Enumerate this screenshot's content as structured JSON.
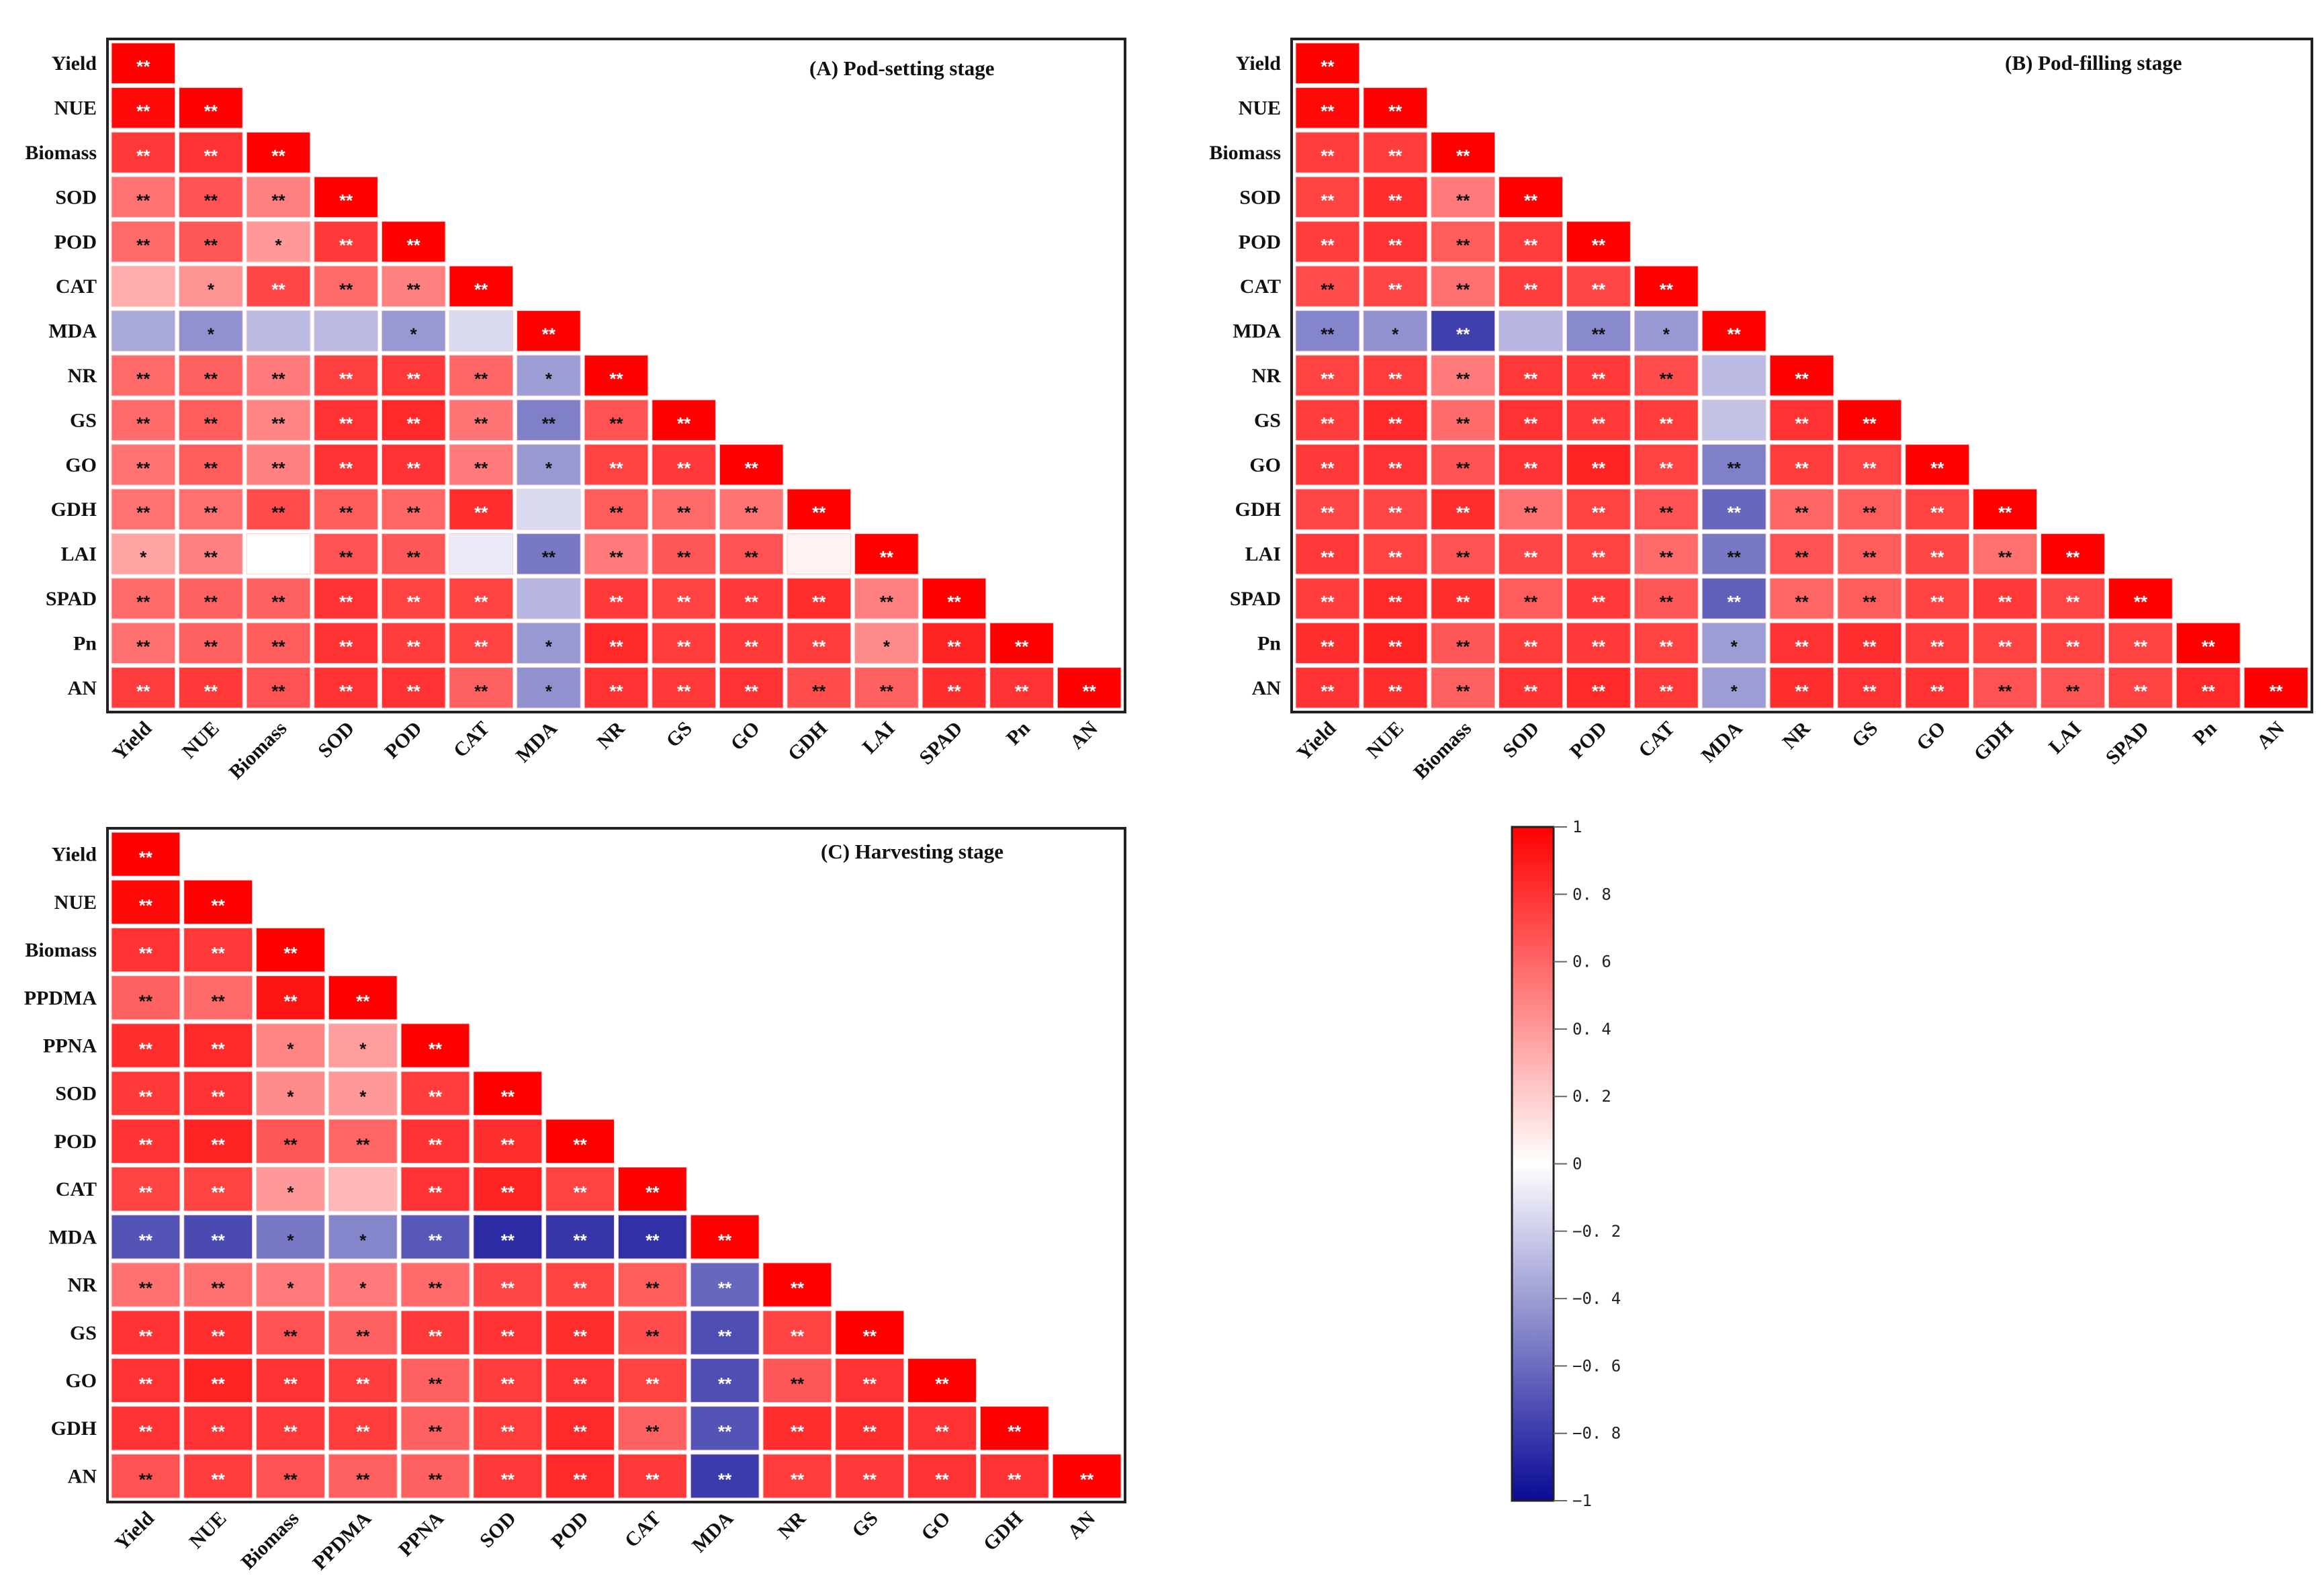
{
  "chart_data": [
    {
      "type": "heatmap",
      "title": "(A)  Pod-setting stage",
      "variables": [
        "Yield",
        "NUE",
        "Biomass",
        "SOD",
        "POD",
        "CAT",
        "MDA",
        "NR",
        "GS",
        "GO",
        "GDH",
        "LAI",
        "SPAD",
        "Pn",
        "AN"
      ],
      "r": [
        [
          1
        ],
        [
          0.97,
          1
        ],
        [
          0.78,
          0.8,
          1
        ],
        [
          0.55,
          0.68,
          0.5,
          1
        ],
        [
          0.58,
          0.66,
          0.4,
          0.78,
          1
        ],
        [
          0.32,
          0.42,
          0.72,
          0.58,
          0.5,
          1
        ],
        [
          -0.35,
          -0.45,
          -0.28,
          -0.28,
          -0.42,
          -0.15,
          1
        ],
        [
          0.58,
          0.62,
          0.52,
          0.75,
          0.78,
          0.6,
          -0.4,
          1
        ],
        [
          0.58,
          0.64,
          0.48,
          0.8,
          0.84,
          0.54,
          -0.52,
          0.68,
          1
        ],
        [
          0.55,
          0.64,
          0.5,
          0.8,
          0.8,
          0.52,
          -0.42,
          0.74,
          0.78,
          1
        ],
        [
          0.55,
          0.56,
          0.7,
          0.64,
          0.6,
          0.82,
          -0.15,
          0.64,
          0.58,
          0.55,
          1
        ],
        [
          0.36,
          0.5,
          0.0,
          0.68,
          0.66,
          -0.08,
          -0.55,
          0.52,
          0.66,
          0.68,
          0.05,
          1
        ],
        [
          0.58,
          0.62,
          0.62,
          0.8,
          0.74,
          0.74,
          -0.3,
          0.78,
          0.74,
          0.78,
          0.82,
          0.5,
          1
        ],
        [
          0.56,
          0.62,
          0.64,
          0.8,
          0.76,
          0.74,
          -0.42,
          0.84,
          0.76,
          0.78,
          0.76,
          0.46,
          0.86,
          1
        ],
        [
          0.76,
          0.78,
          0.68,
          0.8,
          0.8,
          0.62,
          -0.45,
          0.8,
          0.78,
          0.8,
          0.7,
          0.62,
          0.82,
          0.8,
          1
        ]
      ],
      "sig": [
        [
          "**"
        ],
        [
          "**",
          "**"
        ],
        [
          "**",
          "**",
          "**"
        ],
        [
          "**",
          "**",
          "**",
          "**"
        ],
        [
          "**",
          "**",
          "*",
          "**",
          "**"
        ],
        [
          "",
          "*",
          "**",
          "**",
          "**",
          "**"
        ],
        [
          "",
          "*",
          "",
          "",
          "*",
          "",
          "**"
        ],
        [
          "**",
          "**",
          "**",
          "**",
          "**",
          "**",
          "*",
          "**"
        ],
        [
          "**",
          "**",
          "**",
          "**",
          "**",
          "**",
          "**",
          "**",
          "**"
        ],
        [
          "**",
          "**",
          "**",
          "**",
          "**",
          "**",
          "*",
          "**",
          "**",
          "**"
        ],
        [
          "**",
          "**",
          "**",
          "**",
          "**",
          "**",
          "",
          "**",
          "**",
          "**",
          "**"
        ],
        [
          "*",
          "**",
          "",
          "**",
          "**",
          "",
          "**",
          "**",
          "**",
          "**",
          "",
          "**"
        ],
        [
          "**",
          "**",
          "**",
          "**",
          "**",
          "**",
          "",
          "**",
          "**",
          "**",
          "**",
          "**",
          "**"
        ],
        [
          "**",
          "**",
          "**",
          "**",
          "**",
          "**",
          "*",
          "**",
          "**",
          "**",
          "**",
          "*",
          "**",
          "**"
        ],
        [
          "**",
          "**",
          "**",
          "**",
          "**",
          "**",
          "*",
          "**",
          "**",
          "**",
          "**",
          "**",
          "**",
          "**",
          "**"
        ]
      ]
    },
    {
      "type": "heatmap",
      "title": "(B)  Pod-filling stage",
      "variables": [
        "Yield",
        "NUE",
        "Biomass",
        "SOD",
        "POD",
        "CAT",
        "MDA",
        "NR",
        "GS",
        "GO",
        "GDH",
        "LAI",
        "SPAD",
        "Pn",
        "AN"
      ],
      "r": [
        [
          1
        ],
        [
          0.97,
          1
        ],
        [
          0.76,
          0.76,
          1
        ],
        [
          0.74,
          0.82,
          0.52,
          1
        ],
        [
          0.76,
          0.8,
          0.64,
          0.76,
          1
        ],
        [
          0.7,
          0.73,
          0.56,
          0.76,
          0.73,
          1
        ],
        [
          -0.5,
          -0.45,
          -0.78,
          -0.3,
          -0.48,
          -0.42,
          1
        ],
        [
          0.74,
          0.76,
          0.52,
          0.78,
          0.78,
          0.7,
          -0.28,
          1
        ],
        [
          0.76,
          0.84,
          0.58,
          0.8,
          0.78,
          0.76,
          -0.25,
          0.8,
          1
        ],
        [
          0.78,
          0.8,
          0.68,
          0.8,
          0.86,
          0.74,
          -0.52,
          0.76,
          0.74,
          1
        ],
        [
          0.73,
          0.73,
          0.82,
          0.56,
          0.74,
          0.68,
          -0.62,
          0.6,
          0.64,
          0.74,
          1
        ],
        [
          0.78,
          0.74,
          0.68,
          0.73,
          0.74,
          0.58,
          -0.55,
          0.68,
          0.64,
          0.73,
          0.56,
          1
        ],
        [
          0.76,
          0.84,
          0.82,
          0.64,
          0.78,
          0.66,
          -0.65,
          0.6,
          0.64,
          0.74,
          0.78,
          0.73,
          1
        ],
        [
          0.82,
          0.86,
          0.66,
          0.76,
          0.78,
          0.74,
          -0.4,
          0.8,
          0.82,
          0.76,
          0.74,
          0.74,
          0.74,
          1
        ],
        [
          0.8,
          0.82,
          0.62,
          0.8,
          0.84,
          0.78,
          -0.4,
          0.82,
          0.8,
          0.8,
          0.68,
          0.68,
          0.74,
          0.84,
          1
        ]
      ],
      "sig": [
        [
          "**"
        ],
        [
          "**",
          "**"
        ],
        [
          "**",
          "**",
          "**"
        ],
        [
          "**",
          "**",
          "**",
          "**"
        ],
        [
          "**",
          "**",
          "**",
          "**",
          "**"
        ],
        [
          "**",
          "**",
          "**",
          "**",
          "**",
          "**"
        ],
        [
          "**",
          "*",
          "**",
          "",
          "**",
          "*",
          "**"
        ],
        [
          "**",
          "**",
          "**",
          "**",
          "**",
          "**",
          "",
          "**"
        ],
        [
          "**",
          "**",
          "**",
          "**",
          "**",
          "**",
          "",
          "**",
          "**"
        ],
        [
          "**",
          "**",
          "**",
          "**",
          "**",
          "**",
          "**",
          "**",
          "**",
          "**"
        ],
        [
          "**",
          "**",
          "**",
          "**",
          "**",
          "**",
          "**",
          "**",
          "**",
          "**",
          "**"
        ],
        [
          "**",
          "**",
          "**",
          "**",
          "**",
          "**",
          "**",
          "**",
          "**",
          "**",
          "**",
          "**"
        ],
        [
          "**",
          "**",
          "**",
          "**",
          "**",
          "**",
          "**",
          "**",
          "**",
          "**",
          "**",
          "**",
          "**"
        ],
        [
          "**",
          "**",
          "**",
          "**",
          "**",
          "**",
          "*",
          "**",
          "**",
          "**",
          "**",
          "**",
          "**",
          "**"
        ],
        [
          "**",
          "**",
          "**",
          "**",
          "**",
          "**",
          "*",
          "**",
          "**",
          "**",
          "**",
          "**",
          "**",
          "**",
          "**"
        ]
      ]
    },
    {
      "type": "heatmap",
      "title": "(C)  Harvesting stage",
      "variables": [
        "Yield",
        "NUE",
        "Biomass",
        "PPDMA",
        "PPNA",
        "SOD",
        "POD",
        "CAT",
        "MDA",
        "NR",
        "GS",
        "GO",
        "GDH",
        "AN"
      ],
      "r": [
        [
          1
        ],
        [
          0.97,
          1
        ],
        [
          0.8,
          0.78,
          1
        ],
        [
          0.62,
          0.58,
          0.92,
          1
        ],
        [
          0.82,
          0.84,
          0.48,
          0.38,
          1
        ],
        [
          0.78,
          0.8,
          0.46,
          0.4,
          0.76,
          1
        ],
        [
          0.8,
          0.86,
          0.66,
          0.6,
          0.8,
          0.82,
          1
        ],
        [
          0.74,
          0.74,
          0.4,
          0.28,
          0.8,
          0.86,
          0.74,
          1
        ],
        [
          -0.7,
          -0.74,
          -0.55,
          -0.5,
          -0.68,
          -0.86,
          -0.82,
          -0.84,
          1
        ],
        [
          0.56,
          0.56,
          0.52,
          0.52,
          0.58,
          0.73,
          0.74,
          0.64,
          -0.62,
          1
        ],
        [
          0.8,
          0.82,
          0.68,
          0.62,
          0.78,
          0.8,
          0.82,
          0.7,
          -0.72,
          0.74,
          1
        ],
        [
          0.8,
          0.86,
          0.8,
          0.76,
          0.62,
          0.76,
          0.8,
          0.74,
          -0.72,
          0.66,
          0.8,
          1
        ],
        [
          0.8,
          0.8,
          0.78,
          0.76,
          0.62,
          0.76,
          0.84,
          0.62,
          -0.7,
          0.82,
          0.82,
          0.8,
          1
        ],
        [
          0.68,
          0.76,
          0.68,
          0.62,
          0.62,
          0.78,
          0.84,
          0.78,
          -0.8,
          0.76,
          0.78,
          0.8,
          0.8,
          1
        ]
      ],
      "sig": [
        [
          "**"
        ],
        [
          "**",
          "**"
        ],
        [
          "**",
          "**",
          "**"
        ],
        [
          "**",
          "**",
          "**",
          "**"
        ],
        [
          "**",
          "**",
          "*",
          "*",
          "**"
        ],
        [
          "**",
          "**",
          "*",
          "*",
          "**",
          "**"
        ],
        [
          "**",
          "**",
          "**",
          "**",
          "**",
          "**",
          "**"
        ],
        [
          "**",
          "**",
          "*",
          "",
          "**",
          "**",
          "**",
          "**"
        ],
        [
          "**",
          "**",
          "*",
          "*",
          "**",
          "**",
          "**",
          "**",
          "**"
        ],
        [
          "**",
          "**",
          "*",
          "*",
          "**",
          "**",
          "**",
          "**",
          "**",
          "**"
        ],
        [
          "**",
          "**",
          "**",
          "**",
          "**",
          "**",
          "**",
          "**",
          "**",
          "**",
          "**"
        ],
        [
          "**",
          "**",
          "**",
          "**",
          "**",
          "**",
          "**",
          "**",
          "**",
          "**",
          "**",
          "**"
        ],
        [
          "**",
          "**",
          "**",
          "**",
          "**",
          "**",
          "**",
          "**",
          "**",
          "**",
          "**",
          "**",
          "**"
        ],
        [
          "**",
          "**",
          "**",
          "**",
          "**",
          "**",
          "**",
          "**",
          "**",
          "**",
          "**",
          "**",
          "**",
          "**"
        ]
      ]
    }
  ],
  "colorbar": {
    "range": [
      -1,
      1
    ],
    "ticks": [
      "1",
      "0. 8",
      "0. 6",
      "0. 4",
      "0. 2",
      "0",
      "−0. 2",
      "−0. 4",
      "−0. 6",
      "−0. 8",
      "−1"
    ],
    "tick_values": [
      1,
      0.8,
      0.6,
      0.4,
      0.2,
      0,
      -0.2,
      -0.4,
      -0.6,
      -0.8,
      -1
    ],
    "colors": {
      "positive": "#ff0000",
      "zero": "#ffffff",
      "negative": "#0a0a96"
    }
  }
}
